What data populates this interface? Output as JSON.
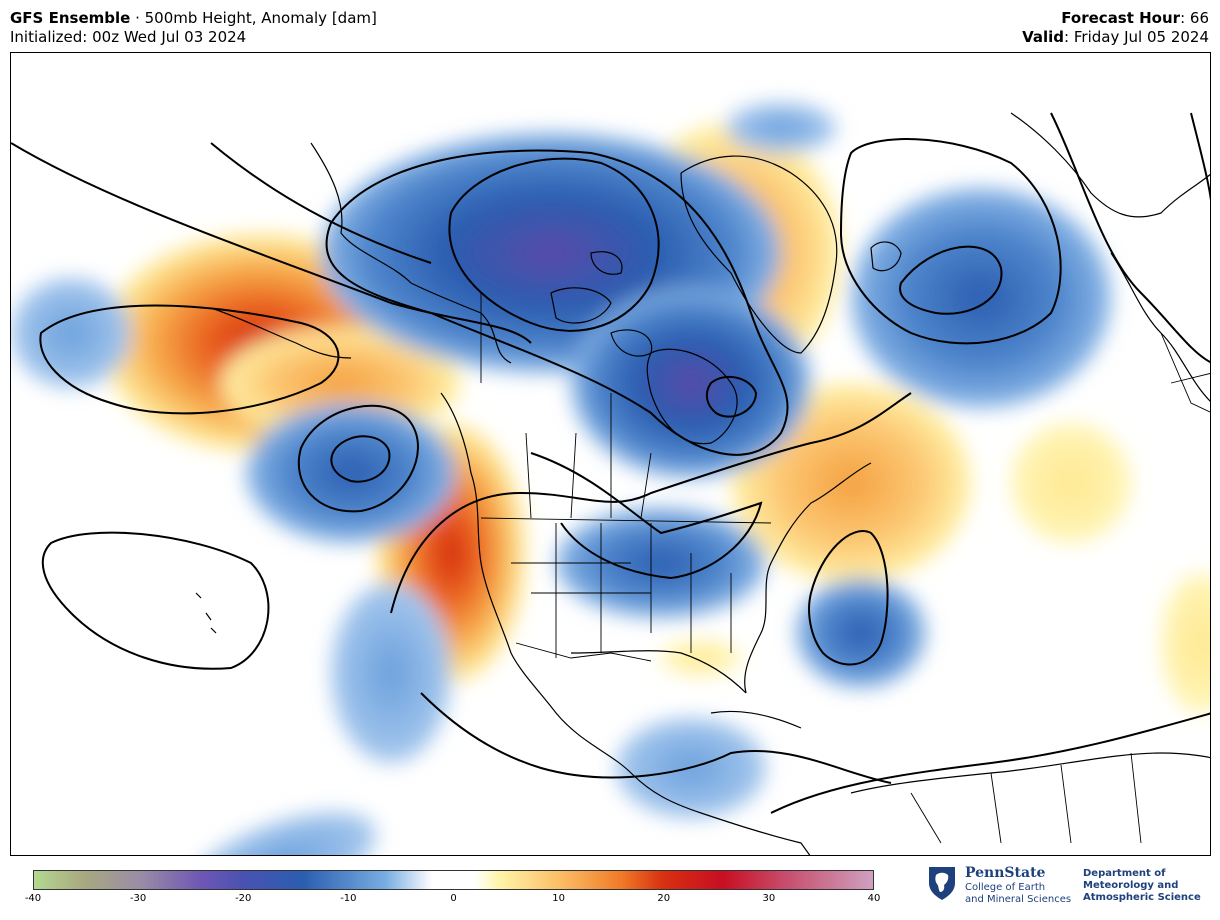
{
  "header": {
    "model": "GFS Ensemble",
    "separator": " · ",
    "product": "500mb Height, Anomaly [dam]",
    "initialized": "Initialized: 00z Wed Jul 03 2024",
    "forecast_hour_label": "Forecast Hour",
    "forecast_hour_value": ": 66",
    "valid_label": "Valid",
    "valid_value": ": Friday Jul 05 2024"
  },
  "colorbar": {
    "ticks": [
      "-40",
      "-30",
      "-20",
      "-10",
      "0",
      "10",
      "20",
      "30",
      "40"
    ],
    "min": -40,
    "max": 40
  },
  "logo": {
    "university": "PennState",
    "college_line1": "College of Earth",
    "college_line2": "and Mineral Sciences",
    "dept_line1": "Department of",
    "dept_line2": "Meteorology and",
    "dept_line3": "Atmospheric Science"
  },
  "colors": {
    "negative_strong": "#5a4aa8",
    "negative": "#2a5db0",
    "negative_light": "#8cb8e8",
    "positive_light": "#fff3a8",
    "positive": "#f5a040",
    "positive_strong": "#d42a10",
    "contour": "#000000",
    "coastline": "#000000",
    "brand": "#1e407c"
  }
}
